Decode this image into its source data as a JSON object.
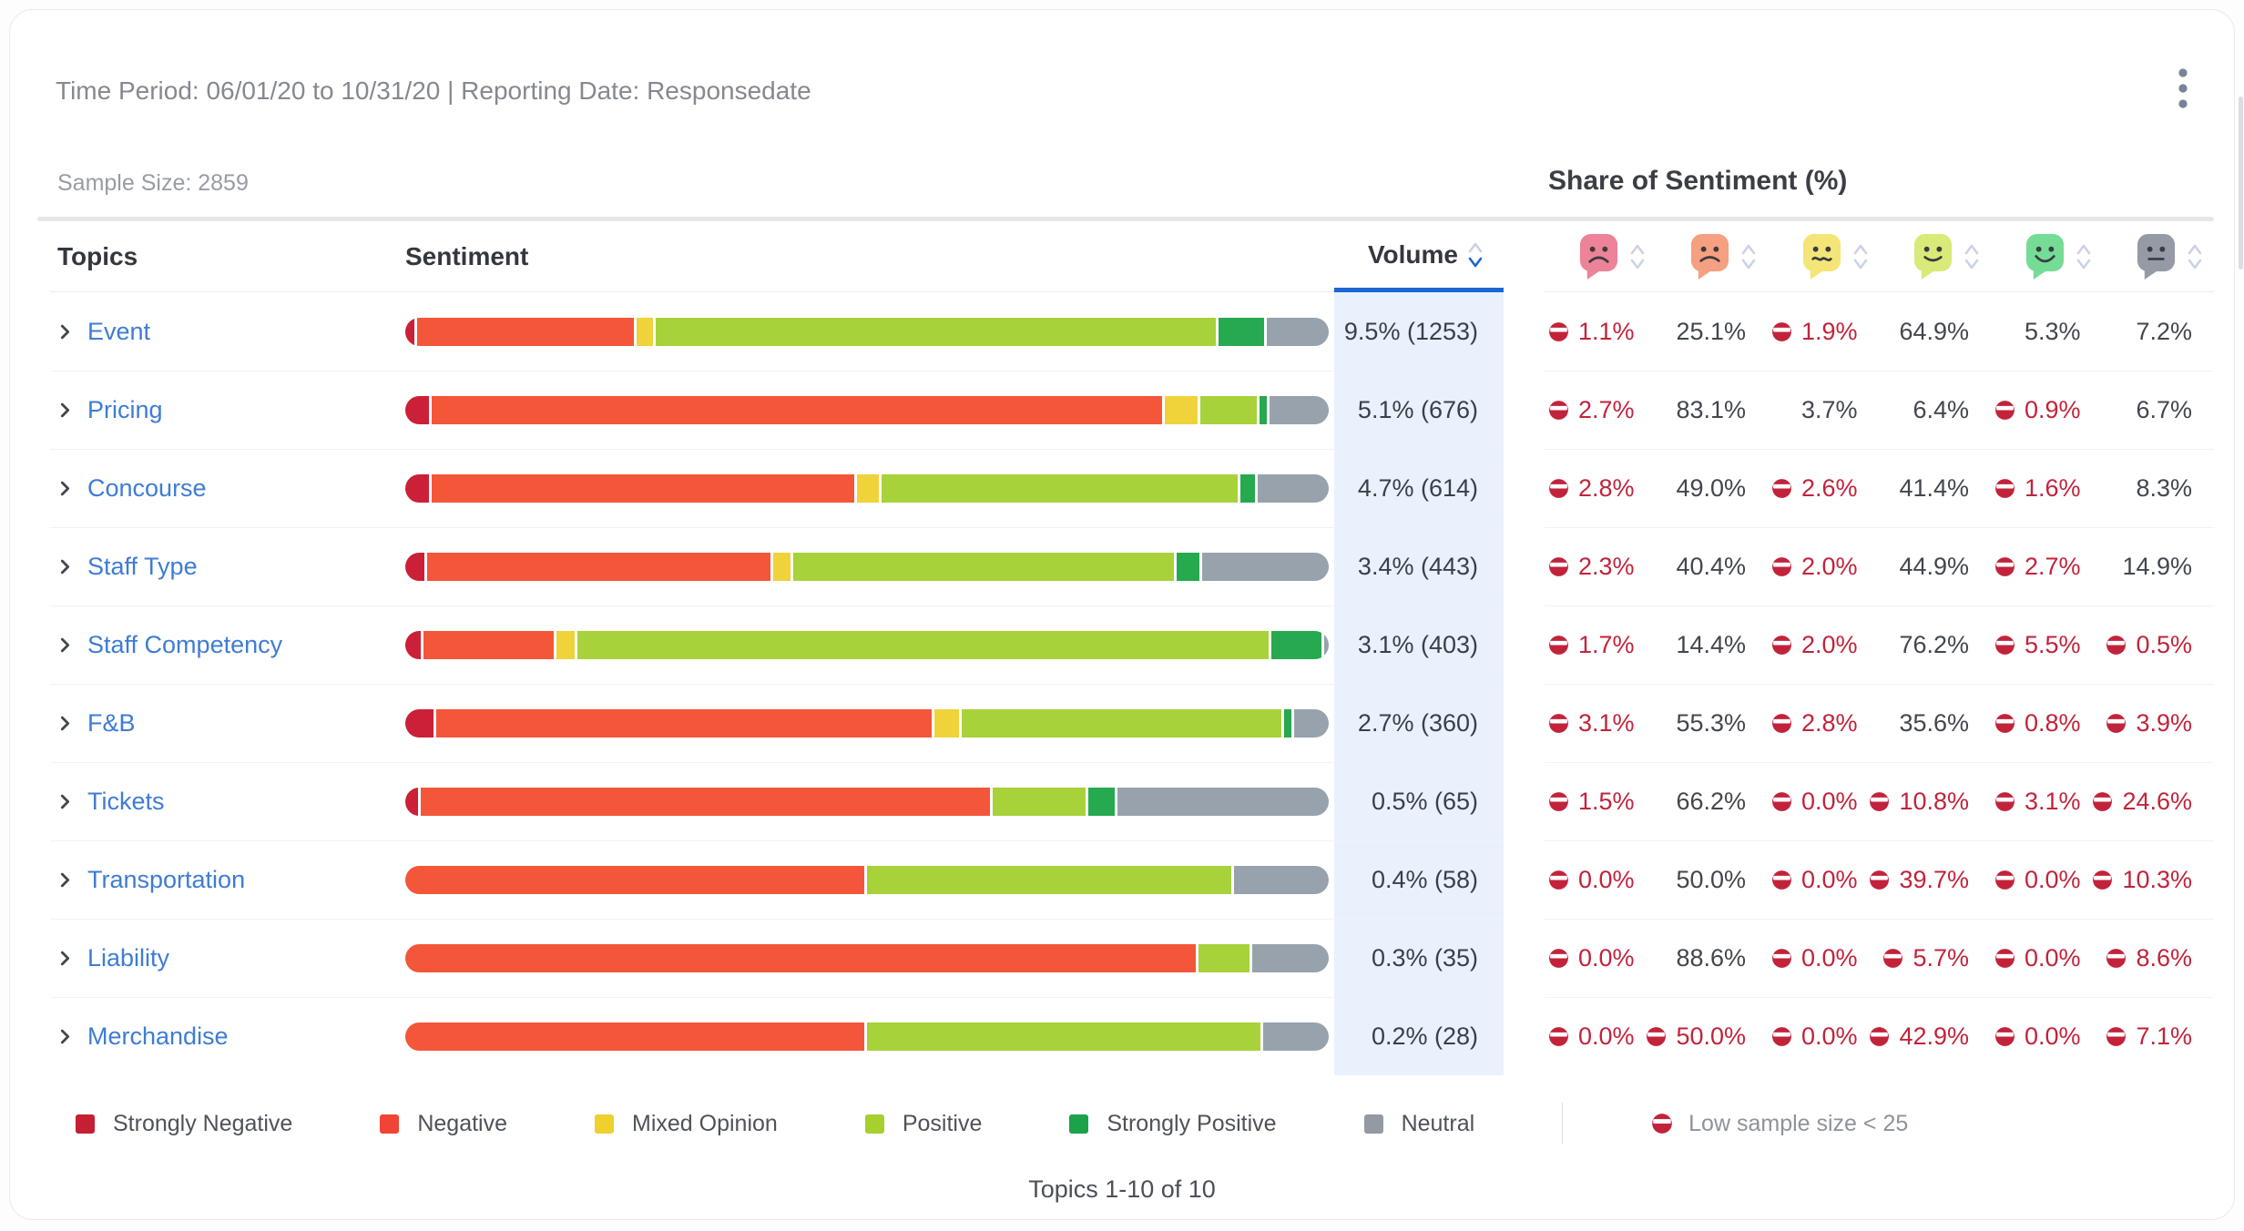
{
  "header": {
    "time_period": "Time Period: 06/01/20 to 10/31/20 | Reporting Date: Responsedate",
    "sample_size": "Sample Size: 2859",
    "share_title": "Share of Sentiment (%)"
  },
  "columns": {
    "topics": "Topics",
    "sentiment": "Sentiment",
    "volume": "Volume"
  },
  "sentiment_keys": [
    "strongly-negative",
    "negative",
    "mixed-opinion",
    "positive",
    "strongly-positive",
    "neutral"
  ],
  "colors": {
    "bar": [
      "#cb2038",
      "#f4563a",
      "#f0d23a",
      "#a8d23a",
      "#27a94f",
      "#98a2ad"
    ],
    "emoji": [
      "#ec8398",
      "#f5a081",
      "#f4e579",
      "#d9ea79",
      "#75dc96",
      "#959ba4"
    ],
    "accent_blue": "#1b67d3",
    "link_blue": "#3e7cd4",
    "low_sample_red": "#c2233b",
    "volume_column_bg": "#e9f1fc"
  },
  "rows": [
    {
      "topic": "Event",
      "volume": "9.5% (1253)",
      "shares": [
        {
          "label": "1.1%",
          "pct": 1.1,
          "low": true
        },
        {
          "label": "25.1%",
          "pct": 25.1,
          "low": false
        },
        {
          "label": "1.9%",
          "pct": 1.9,
          "low": true
        },
        {
          "label": "64.9%",
          "pct": 64.9,
          "low": false
        },
        {
          "label": "5.3%",
          "pct": 5.3,
          "low": false
        },
        {
          "label": "7.2%",
          "pct": 7.2,
          "low": false
        }
      ]
    },
    {
      "topic": "Pricing",
      "volume": "5.1% (676)",
      "shares": [
        {
          "label": "2.7%",
          "pct": 2.7,
          "low": true
        },
        {
          "label": "83.1%",
          "pct": 83.1,
          "low": false
        },
        {
          "label": "3.7%",
          "pct": 3.7,
          "low": false
        },
        {
          "label": "6.4%",
          "pct": 6.4,
          "low": false
        },
        {
          "label": "0.9%",
          "pct": 0.9,
          "low": true
        },
        {
          "label": "6.7%",
          "pct": 6.7,
          "low": false
        }
      ]
    },
    {
      "topic": "Concourse",
      "volume": "4.7% (614)",
      "shares": [
        {
          "label": "2.8%",
          "pct": 2.8,
          "low": true
        },
        {
          "label": "49.0%",
          "pct": 49.0,
          "low": false
        },
        {
          "label": "2.6%",
          "pct": 2.6,
          "low": true
        },
        {
          "label": "41.4%",
          "pct": 41.4,
          "low": false
        },
        {
          "label": "1.6%",
          "pct": 1.6,
          "low": true
        },
        {
          "label": "8.3%",
          "pct": 8.3,
          "low": false
        }
      ]
    },
    {
      "topic": "Staff Type",
      "volume": "3.4% (443)",
      "shares": [
        {
          "label": "2.3%",
          "pct": 2.3,
          "low": true
        },
        {
          "label": "40.4%",
          "pct": 40.4,
          "low": false
        },
        {
          "label": "2.0%",
          "pct": 2.0,
          "low": true
        },
        {
          "label": "44.9%",
          "pct": 44.9,
          "low": false
        },
        {
          "label": "2.7%",
          "pct": 2.7,
          "low": true
        },
        {
          "label": "14.9%",
          "pct": 14.9,
          "low": false
        }
      ]
    },
    {
      "topic": "Staff Competency",
      "volume": "3.1% (403)",
      "shares": [
        {
          "label": "1.7%",
          "pct": 1.7,
          "low": true
        },
        {
          "label": "14.4%",
          "pct": 14.4,
          "low": false
        },
        {
          "label": "2.0%",
          "pct": 2.0,
          "low": true
        },
        {
          "label": "76.2%",
          "pct": 76.2,
          "low": false
        },
        {
          "label": "5.5%",
          "pct": 5.5,
          "low": true
        },
        {
          "label": "0.5%",
          "pct": 0.5,
          "low": true
        }
      ]
    },
    {
      "topic": "F&B",
      "volume": "2.7% (360)",
      "shares": [
        {
          "label": "3.1%",
          "pct": 3.1,
          "low": true
        },
        {
          "label": "55.3%",
          "pct": 55.3,
          "low": false
        },
        {
          "label": "2.8%",
          "pct": 2.8,
          "low": true
        },
        {
          "label": "35.6%",
          "pct": 35.6,
          "low": false
        },
        {
          "label": "0.8%",
          "pct": 0.8,
          "low": true
        },
        {
          "label": "3.9%",
          "pct": 3.9,
          "low": true
        }
      ]
    },
    {
      "topic": "Tickets",
      "volume": "0.5% (65)",
      "shares": [
        {
          "label": "1.5%",
          "pct": 1.5,
          "low": true
        },
        {
          "label": "66.2%",
          "pct": 66.2,
          "low": false
        },
        {
          "label": "0.0%",
          "pct": 0.0,
          "low": true
        },
        {
          "label": "10.8%",
          "pct": 10.8,
          "low": true
        },
        {
          "label": "3.1%",
          "pct": 3.1,
          "low": true
        },
        {
          "label": "24.6%",
          "pct": 24.6,
          "low": true
        }
      ]
    },
    {
      "topic": "Transportation",
      "volume": "0.4% (58)",
      "shares": [
        {
          "label": "0.0%",
          "pct": 0.0,
          "low": true
        },
        {
          "label": "50.0%",
          "pct": 50.0,
          "low": false
        },
        {
          "label": "0.0%",
          "pct": 0.0,
          "low": true
        },
        {
          "label": "39.7%",
          "pct": 39.7,
          "low": true
        },
        {
          "label": "0.0%",
          "pct": 0.0,
          "low": true
        },
        {
          "label": "10.3%",
          "pct": 10.3,
          "low": true
        }
      ]
    },
    {
      "topic": "Liability",
      "volume": "0.3% (35)",
      "shares": [
        {
          "label": "0.0%",
          "pct": 0.0,
          "low": true
        },
        {
          "label": "88.6%",
          "pct": 88.6,
          "low": false
        },
        {
          "label": "0.0%",
          "pct": 0.0,
          "low": true
        },
        {
          "label": "5.7%",
          "pct": 5.7,
          "low": true
        },
        {
          "label": "0.0%",
          "pct": 0.0,
          "low": true
        },
        {
          "label": "8.6%",
          "pct": 8.6,
          "low": true
        }
      ]
    },
    {
      "topic": "Merchandise",
      "volume": "0.2% (28)",
      "shares": [
        {
          "label": "0.0%",
          "pct": 0.0,
          "low": true
        },
        {
          "label": "50.0%",
          "pct": 50.0,
          "low": true
        },
        {
          "label": "0.0%",
          "pct": 0.0,
          "low": true
        },
        {
          "label": "42.9%",
          "pct": 42.9,
          "low": true
        },
        {
          "label": "0.0%",
          "pct": 0.0,
          "low": true
        },
        {
          "label": "7.1%",
          "pct": 7.1,
          "low": true
        }
      ]
    }
  ],
  "legend": {
    "items": [
      {
        "label": "Strongly Negative",
        "color": "#c41f33"
      },
      {
        "label": "Negative",
        "color": "#f14336"
      },
      {
        "label": "Mixed Opinion",
        "color": "#eed02e"
      },
      {
        "label": "Positive",
        "color": "#a5d02e"
      },
      {
        "label": "Strongly Positive",
        "color": "#1ca24b"
      },
      {
        "label": "Neutral",
        "color": "#939aa4"
      }
    ],
    "low_note": "Low sample size < 25"
  },
  "pagination": "Topics 1-10 of 10"
}
